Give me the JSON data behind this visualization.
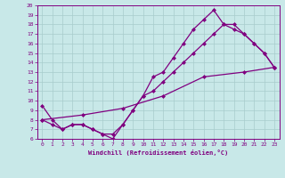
{
  "line1_x": [
    0,
    1,
    2,
    3,
    4,
    5,
    6,
    7,
    8,
    9,
    10,
    11,
    12,
    13,
    14,
    15,
    16,
    17,
    18,
    19,
    20,
    21,
    22,
    23
  ],
  "line1_y": [
    9.5,
    8,
    7,
    7.5,
    7.5,
    7,
    6.5,
    6,
    7.5,
    9,
    10.5,
    12.5,
    13,
    14.5,
    16,
    17.5,
    18.5,
    19.5,
    18,
    17.5,
    17,
    16,
    15,
    13.5
  ],
  "line2_x": [
    0,
    1,
    2,
    3,
    4,
    5,
    6,
    7,
    8,
    9,
    10,
    11,
    12,
    13,
    14,
    15,
    16,
    17,
    18,
    19,
    20,
    21,
    22,
    23
  ],
  "line2_y": [
    8,
    7.5,
    7,
    7.5,
    7.5,
    7,
    6.5,
    6.5,
    7.5,
    9.0,
    10.5,
    11,
    12,
    13,
    14,
    15,
    16,
    17,
    18,
    18,
    17,
    16,
    15,
    13.5
  ],
  "line3_x": [
    0,
    4,
    8,
    12,
    16,
    20,
    23
  ],
  "line3_y": [
    8,
    8.5,
    9.2,
    10.5,
    12.5,
    13.0,
    13.5
  ],
  "color": "#800080",
  "bg_color": "#c8e8e8",
  "grid_color": "#a8cccc",
  "xlabel": "Windchill (Refroidissement éolien,°C)",
  "xlim": [
    -0.5,
    23.5
  ],
  "ylim": [
    6,
    20
  ],
  "xticks": [
    0,
    1,
    2,
    3,
    4,
    5,
    6,
    7,
    8,
    9,
    10,
    11,
    12,
    13,
    14,
    15,
    16,
    17,
    18,
    19,
    20,
    21,
    22,
    23
  ],
  "yticks": [
    6,
    7,
    8,
    9,
    10,
    11,
    12,
    13,
    14,
    15,
    16,
    17,
    18,
    19,
    20
  ],
  "marker": "D",
  "markersize": 2,
  "linewidth": 0.9,
  "tick_fontsize": 4.5,
  "xlabel_fontsize": 5.0
}
